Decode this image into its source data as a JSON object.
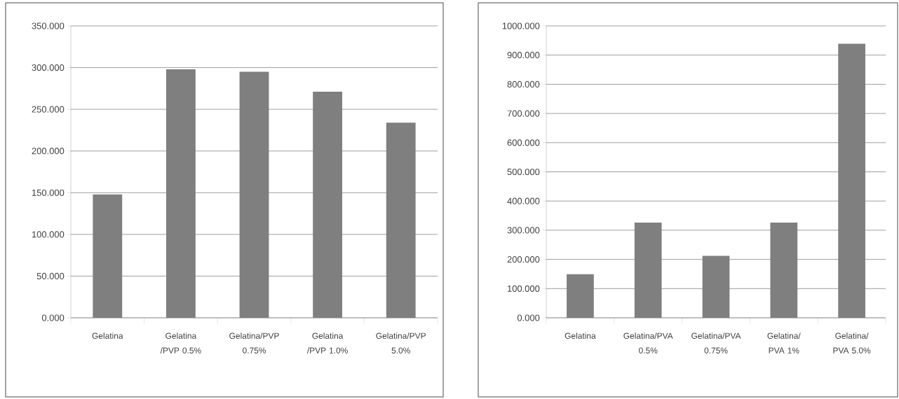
{
  "chart_data": [
    {
      "type": "bar",
      "categories": [
        "Gelatina",
        "Gelatina /PVP 0.5%",
        "Gelatina/PVP 0.75%",
        "Gelatina /PVP 1.0%",
        "Gelatina/PVP 5.0%"
      ],
      "values": [
        148,
        298,
        295,
        271,
        234
      ],
      "color": "#7f7f7f",
      "ylim": [
        0,
        350
      ],
      "yticks": [
        {
          "value": 0,
          "label": "0.000"
        },
        {
          "value": 50,
          "label": "50.000"
        },
        {
          "value": 100,
          "label": "100.000"
        },
        {
          "value": 150,
          "label": "150.000"
        },
        {
          "value": 200,
          "label": "200.000"
        },
        {
          "value": 250,
          "label": "250.000"
        },
        {
          "value": 300,
          "label": "300.000"
        },
        {
          "value": 350,
          "label": "350.000"
        }
      ],
      "grid": "y"
    },
    {
      "type": "bar",
      "categories": [
        "Gelatina",
        "Gelatina/PVA 0.5%",
        "Gelatina/PVA 0.75%",
        "Gelatina/ PVA 1%",
        "Gelatina/ PVA 5.0%"
      ],
      "values": [
        149,
        326,
        212,
        326,
        939
      ],
      "color": "#7f7f7f",
      "ylim": [
        0,
        1000
      ],
      "yticks": [
        {
          "value": 0,
          "label": "0.000"
        },
        {
          "value": 100,
          "label": "100.000"
        },
        {
          "value": 200,
          "label": "200.000"
        },
        {
          "value": 300,
          "label": "300.000"
        },
        {
          "value": 400,
          "label": "400.000"
        },
        {
          "value": 500,
          "label": "500.000"
        },
        {
          "value": 600,
          "label": "600.000"
        },
        {
          "value": 700,
          "label": "700.000"
        },
        {
          "value": 800,
          "label": "800.000"
        },
        {
          "value": 900,
          "label": "900.000"
        },
        {
          "value": 1000,
          "label": "1000.000"
        }
      ],
      "grid": "y"
    }
  ]
}
